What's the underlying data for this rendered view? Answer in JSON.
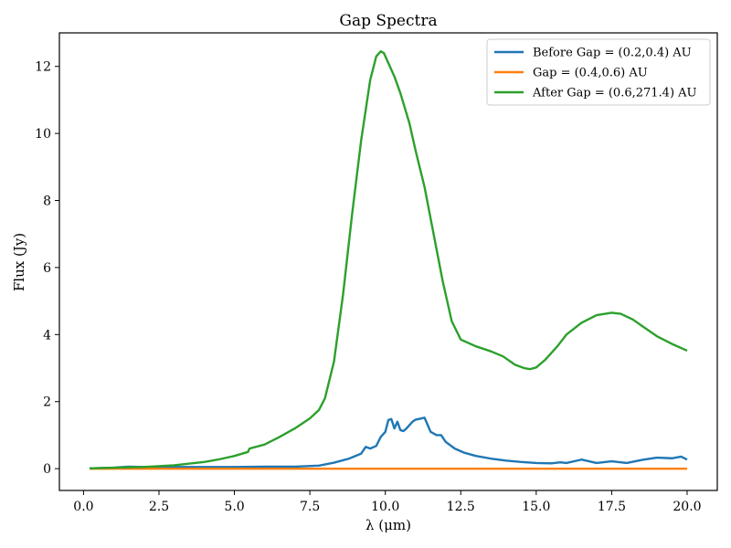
{
  "chart_data": {
    "type": "line",
    "title": "Gap Spectra",
    "xlabel": "λ (μm)",
    "ylabel": "Flux (Jy)",
    "xlim": [
      -0.8,
      21.0
    ],
    "ylim": [
      -0.65,
      13.0
    ],
    "xticks": [
      0.0,
      2.5,
      5.0,
      7.5,
      10.0,
      12.5,
      15.0,
      17.5,
      20.0
    ],
    "xtick_labels": [
      "0.0",
      "2.5",
      "5.0",
      "7.5",
      "10.0",
      "12.5",
      "15.0",
      "17.5",
      "20.0"
    ],
    "yticks": [
      0,
      2,
      4,
      6,
      8,
      10,
      12
    ],
    "ytick_labels": [
      "0",
      "2",
      "4",
      "6",
      "8",
      "10",
      "12"
    ],
    "grid": false,
    "legend_position": "top-right",
    "series": [
      {
        "name": "Before Gap = (0.2,0.4) AU",
        "color": "#1f77b4",
        "x": [
          0.2,
          1.0,
          1.5,
          2.0,
          3.0,
          4.0,
          5.0,
          6.0,
          7.0,
          7.8,
          8.3,
          8.8,
          9.2,
          9.35,
          9.5,
          9.7,
          9.85,
          10.0,
          10.1,
          10.2,
          10.3,
          10.4,
          10.5,
          10.6,
          10.7,
          10.9,
          11.0,
          11.2,
          11.3,
          11.5,
          11.7,
          11.85,
          12.0,
          12.3,
          12.6,
          13.0,
          13.5,
          14.0,
          14.5,
          15.0,
          15.5,
          15.8,
          16.0,
          16.5,
          17.0,
          17.5,
          18.0,
          18.5,
          19.0,
          19.5,
          19.8,
          20.0
        ],
        "y": [
          0.01,
          0.03,
          0.06,
          0.05,
          0.05,
          0.05,
          0.05,
          0.06,
          0.06,
          0.09,
          0.18,
          0.3,
          0.45,
          0.65,
          0.6,
          0.68,
          0.95,
          1.1,
          1.45,
          1.48,
          1.2,
          1.4,
          1.15,
          1.12,
          1.2,
          1.4,
          1.46,
          1.5,
          1.52,
          1.1,
          1.0,
          1.0,
          0.8,
          0.6,
          0.48,
          0.38,
          0.3,
          0.24,
          0.2,
          0.17,
          0.16,
          0.19,
          0.17,
          0.27,
          0.17,
          0.22,
          0.17,
          0.26,
          0.33,
          0.31,
          0.36,
          0.27
        ]
      },
      {
        "name": "Gap = (0.4,0.6) AU",
        "color": "#ff7f0e",
        "x": [
          0.2,
          20.0
        ],
        "y": [
          0.0,
          0.0
        ]
      },
      {
        "name": "After Gap = (0.6,271.4) AU",
        "color": "#2ca02c",
        "x": [
          0.2,
          1.0,
          2.0,
          3.0,
          4.0,
          4.5,
          5.0,
          5.45,
          5.5,
          6.0,
          6.5,
          7.0,
          7.5,
          7.8,
          8.0,
          8.3,
          8.6,
          8.9,
          9.2,
          9.5,
          9.7,
          9.85,
          9.95,
          10.1,
          10.3,
          10.5,
          10.8,
          11.0,
          11.3,
          11.6,
          11.9,
          12.2,
          12.5,
          13.0,
          13.5,
          13.9,
          14.3,
          14.6,
          14.8,
          15.0,
          15.3,
          15.7,
          16.0,
          16.5,
          17.0,
          17.5,
          17.8,
          18.2,
          18.6,
          19.0,
          19.5,
          20.0
        ],
        "y": [
          0.01,
          0.03,
          0.05,
          0.1,
          0.2,
          0.28,
          0.38,
          0.5,
          0.6,
          0.72,
          0.95,
          1.2,
          1.5,
          1.75,
          2.1,
          3.2,
          5.2,
          7.6,
          9.8,
          11.6,
          12.3,
          12.45,
          12.4,
          12.1,
          11.7,
          11.2,
          10.3,
          9.5,
          8.4,
          7.0,
          5.6,
          4.4,
          3.85,
          3.65,
          3.5,
          3.35,
          3.1,
          3.0,
          2.97,
          3.02,
          3.25,
          3.65,
          4.0,
          4.35,
          4.58,
          4.65,
          4.62,
          4.45,
          4.2,
          3.95,
          3.72,
          3.52
        ]
      }
    ]
  }
}
